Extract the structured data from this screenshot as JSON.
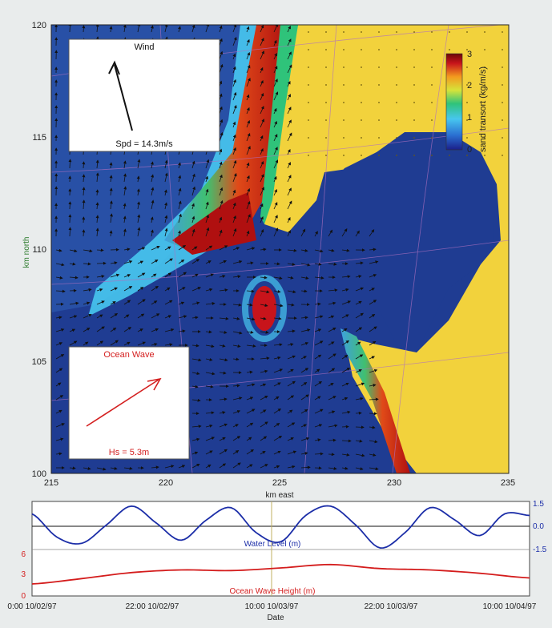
{
  "map": {
    "x_ticks": [
      "215",
      "220",
      "225",
      "230",
      "235"
    ],
    "y_ticks": [
      "100",
      "105",
      "110",
      "115",
      "120"
    ],
    "xlabel": "km east",
    "ylabel": "km north"
  },
  "wind_box": {
    "title": "Wind",
    "speed_label": "Spd = 14.3m/s"
  },
  "wave_box": {
    "title": "Ocean Wave",
    "height_label": "Hs = 5.3m"
  },
  "colorbar": {
    "label": "sand transort (kg/m/s)",
    "ticks": [
      "0",
      "1",
      "2",
      "3"
    ],
    "range": [
      0,
      3
    ],
    "colors": [
      "#1b1f8a",
      "#2a6fd1",
      "#47c6ef",
      "#2fc37a",
      "#d6e33a",
      "#f39a1e",
      "#c8141b",
      "#6b0707"
    ]
  },
  "colors": {
    "land": "#f2d23c",
    "ocean": "#1f3c92",
    "wind_arrow": "#111111",
    "wave_arrow": "#d42020",
    "water_line": "#1c2ea8",
    "wave_line": "#d41c1c"
  },
  "timeseries": {
    "xlabel": "Date",
    "x_ticks": [
      "0:00 10/02/97",
      "22:00 10/02/97",
      "10:00 10/03/97",
      "22:00 10/03/97",
      "10:00 10/04/97"
    ],
    "water_label": "Water Level (m)",
    "water_ticks": [
      "1.5",
      "0.0",
      "-1.5"
    ],
    "wave_label": "Ocean Wave Height (m)",
    "wave_ticks": [
      "6",
      "3",
      "0"
    ]
  },
  "chart_data": [
    {
      "type": "line",
      "title": "",
      "xlabel": "Date",
      "ylabel": "Water Level (m)",
      "x_range": [
        "10/02/97 00:00",
        "10/04/97 12:00"
      ],
      "ylim": [
        -1.5,
        1.5
      ],
      "series": [
        {
          "name": "Water Level (m)",
          "x_hours": [
            0,
            3,
            6,
            9,
            12,
            15,
            18,
            21,
            24,
            27,
            30,
            33,
            36,
            39,
            42,
            45,
            48,
            51,
            54,
            57,
            60
          ],
          "values": [
            0.8,
            -0.7,
            -1.1,
            0.1,
            1.3,
            0.2,
            -0.9,
            0.4,
            1.2,
            -0.4,
            -1.0,
            0.7,
            1.3,
            0.1,
            -1.4,
            -0.4,
            1.2,
            0.4,
            -0.6,
            0.8,
            0.7
          ]
        }
      ]
    },
    {
      "type": "line",
      "title": "",
      "xlabel": "Date",
      "ylabel": "Ocean Wave Height (m)",
      "x_range": [
        "10/02/97 00:00",
        "10/04/97 12:00"
      ],
      "ylim": [
        0,
        6
      ],
      "series": [
        {
          "name": "Ocean Wave Height (m)",
          "x_hours": [
            0,
            6,
            12,
            18,
            24,
            30,
            36,
            42,
            48,
            54,
            60
          ],
          "values": [
            1.8,
            2.6,
            3.5,
            3.9,
            3.8,
            4.2,
            4.7,
            4.1,
            3.9,
            3.4,
            2.7
          ]
        }
      ]
    }
  ]
}
